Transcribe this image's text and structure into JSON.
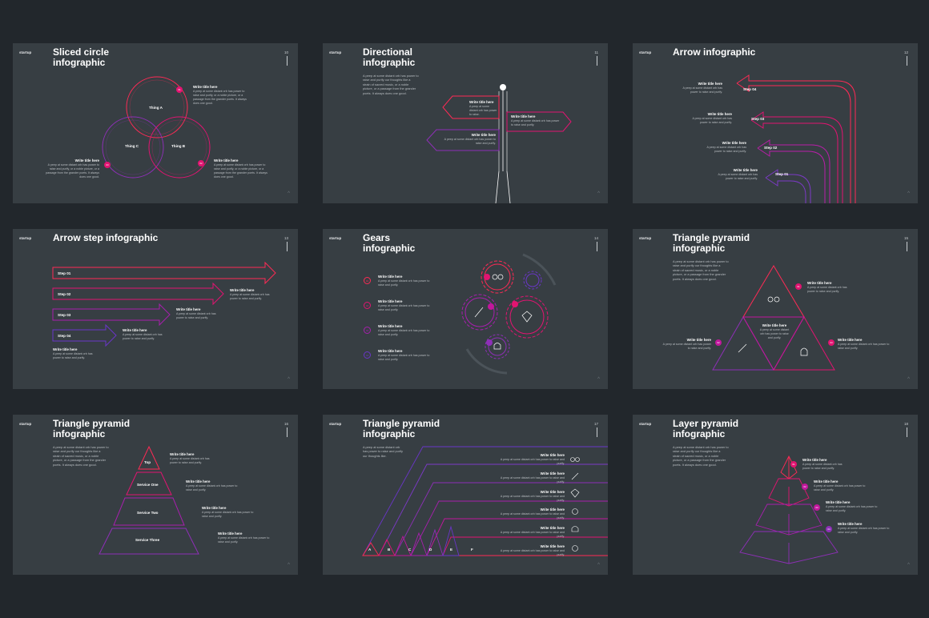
{
  "common": {
    "brand": "startup",
    "write_title": "Write title here",
    "desc_long": "A peep at some distant orb has power to raise and purify, or a noble picture, or a passage from the grander poets. It always does one good.",
    "desc_short": "A peep at some distant orb has power to raise and purify."
  },
  "colors": {
    "background": "#22272c",
    "slide": "#373e43",
    "red": "#ff2a55",
    "pink": "#e21471",
    "purple": "#8e2fb7",
    "violet": "#5a3fc4"
  },
  "slides": [
    {
      "num": "10",
      "title_1": "Sliced circle",
      "title_2": "infographic",
      "circles": [
        "Thing A",
        "Thing B",
        "Thing C"
      ],
      "badges": [
        "01",
        "02",
        "03"
      ]
    },
    {
      "num": "11",
      "title_1": "Directional",
      "title_2": "infographic",
      "intro": "A peep at some distant orb has power to raise and purify our thoughts like a strain of sacred music, or a noble picture, or a passage from the grander poets. It always does one good.",
      "sign_desc": "A peep at some distant orb has power to raise."
    },
    {
      "num": "12",
      "title_1": "Arrow infographic",
      "steps": [
        "Step 04",
        "Step 03",
        "Step 02",
        "Step 01"
      ]
    },
    {
      "num": "13",
      "title_1": "Arrow step infographic",
      "steps": [
        "Step 01",
        "Step 02",
        "Step 03",
        "Step 04"
      ]
    },
    {
      "num": "14",
      "title_1": "Gears",
      "title_2": "infographic",
      "items": [
        "01",
        "02",
        "03",
        "04"
      ]
    },
    {
      "num": "15",
      "title_1": "Triangle pyramid",
      "title_2": "infographic",
      "intro": "A peep at some distant orb has power to raise and purify our thoughts like a strain of sacred music, or a noble picture, or a passage from the grander poets. It always does one good.",
      "badges": [
        "01",
        "02",
        "03",
        "04"
      ]
    },
    {
      "num": "16",
      "title_1": "Triangle pyramid",
      "title_2": "infographic",
      "intro": "A peep at some distant orb has power to raise and purify our thoughts like a strain of sacred music, or a noble picture, or a passage from the grander poets. It always does one good.",
      "levels": [
        "Top",
        "Service One",
        "Service Two",
        "Service Three"
      ]
    },
    {
      "num": "17",
      "title_1": "Triangle pyramid",
      "title_2": "infographic",
      "intro": "A peep at some distant orb has power to raise and purify our thoughts like.",
      "letters": [
        "A",
        "B",
        "C",
        "D",
        "E",
        "F"
      ]
    },
    {
      "num": "18",
      "title_1": "Layer pyramid",
      "title_2": "infographic",
      "intro": "A peep at some distant orb has power to raise and purify our thoughts like a strain of sacred music, or a noble picture, or a passage from the grander poets. It always does one good.",
      "badges": [
        "01",
        "02",
        "03",
        "04"
      ]
    }
  ]
}
